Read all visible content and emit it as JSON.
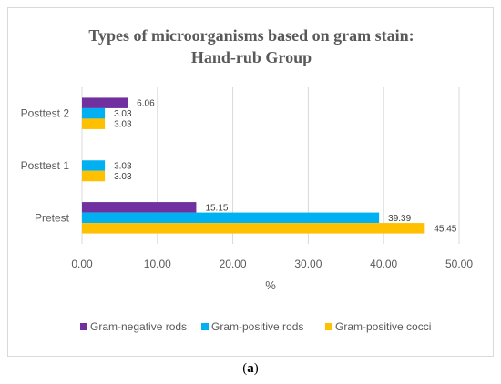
{
  "caption": {
    "open": "(",
    "letter": "a",
    "close": ")"
  },
  "chart_data": {
    "type": "bar",
    "orientation": "horizontal",
    "title_lines": [
      "Types of microorganisms based on gram stain:",
      "Hand-rub Group"
    ],
    "xlabel": "%",
    "xlim": [
      0,
      50
    ],
    "xticks": [
      "0.00",
      "10.00",
      "20.00",
      "30.00",
      "40.00",
      "50.00"
    ],
    "xtick_values": [
      0,
      10,
      20,
      30,
      40,
      50
    ],
    "grid": true,
    "legend_position": "bottom",
    "categories": [
      "Pretest",
      "Posttest 1",
      "Posttest 2"
    ],
    "series": [
      {
        "name": "Gram-negative rods",
        "color": "#7030a0",
        "values": [
          15.15,
          null,
          6.06
        ],
        "labels": [
          "15.15",
          "",
          "6.06"
        ]
      },
      {
        "name": "Gram-positive rods",
        "color": "#00b0f0",
        "values": [
          39.39,
          3.03,
          3.03
        ],
        "labels": [
          "39.39",
          "3.03",
          "3.03"
        ]
      },
      {
        "name": "Gram-positive cocci",
        "color": "#ffc000",
        "values": [
          45.45,
          3.03,
          3.03
        ],
        "labels": [
          "45.45",
          "3.03",
          "3.03"
        ]
      }
    ]
  }
}
